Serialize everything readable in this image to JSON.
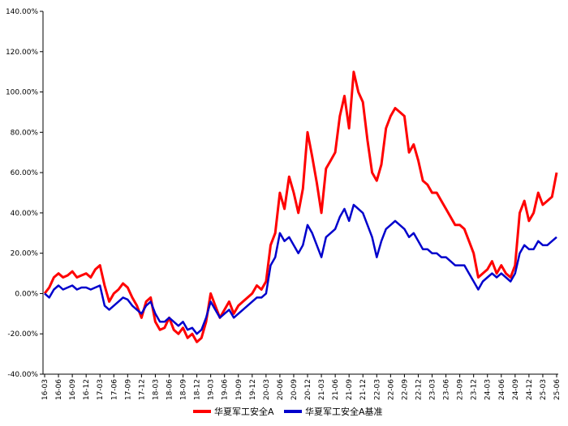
{
  "chart_data": {
    "type": "line",
    "title": "",
    "xlabel": "",
    "ylabel": "",
    "ylim": [
      -40,
      140
    ],
    "y_ticks": [
      "140.00%",
      "120.00%",
      "100.00%",
      "80.00%",
      "60.00%",
      "40.00%",
      "20.00%",
      "0.00%",
      "-20.00%",
      "-40.00%"
    ],
    "x_ticks": [
      "16-03",
      "16-06",
      "16-09",
      "16-12",
      "17-03",
      "17-06",
      "17-09",
      "17-12",
      "18-03",
      "18-06",
      "18-09",
      "18-12",
      "19-03",
      "19-06",
      "19-09",
      "19-12",
      "20-03",
      "20-06",
      "20-09",
      "20-12",
      "21-03",
      "21-06",
      "21-09",
      "21-12",
      "22-03",
      "22-06",
      "22-09",
      "22-12",
      "23-03",
      "23-06",
      "23-09",
      "23-12",
      "24-03",
      "24-06",
      "24-09",
      "24-12",
      "25-03",
      "25-06"
    ],
    "grid": false,
    "legend_position": "bottom-center",
    "series": [
      {
        "name": "华夏军工安全A",
        "color": "#ff0000",
        "x": [
          "16-03",
          "16-04",
          "16-05",
          "16-06",
          "16-07",
          "16-08",
          "16-09",
          "16-10",
          "16-11",
          "16-12",
          "17-01",
          "17-02",
          "17-03",
          "17-04",
          "17-05",
          "17-06",
          "17-07",
          "17-08",
          "17-09",
          "17-10",
          "17-11",
          "17-12",
          "18-01",
          "18-02",
          "18-03",
          "18-04",
          "18-05",
          "18-06",
          "18-07",
          "18-08",
          "18-09",
          "18-10",
          "18-11",
          "18-12",
          "19-01",
          "19-02",
          "19-03",
          "19-04",
          "19-05",
          "19-06",
          "19-07",
          "19-08",
          "19-09",
          "19-10",
          "19-11",
          "19-12",
          "20-01",
          "20-02",
          "20-03",
          "20-04",
          "20-05",
          "20-06",
          "20-07",
          "20-08",
          "20-09",
          "20-10",
          "20-11",
          "20-12",
          "21-01",
          "21-02",
          "21-03",
          "21-04",
          "21-05",
          "21-06",
          "21-07",
          "21-08",
          "21-09",
          "21-10",
          "21-11",
          "21-12",
          "22-01",
          "22-02",
          "22-03",
          "22-04",
          "22-05",
          "22-06",
          "22-07",
          "22-08",
          "22-09",
          "22-10",
          "22-11",
          "22-12",
          "23-01",
          "23-02",
          "23-03",
          "23-04",
          "23-05",
          "23-06",
          "23-07",
          "23-08",
          "23-09",
          "23-10",
          "23-11",
          "23-12",
          "24-01",
          "24-02",
          "24-03",
          "24-04",
          "24-05",
          "24-06",
          "24-07",
          "24-08",
          "24-09",
          "24-10",
          "24-11",
          "24-12",
          "25-01",
          "25-02",
          "25-03",
          "25-04",
          "25-05",
          "25-06"
        ],
        "values": [
          0,
          3,
          8,
          10,
          8,
          9,
          11,
          8,
          9,
          10,
          8,
          12,
          14,
          4,
          -4,
          0,
          2,
          5,
          3,
          -2,
          -6,
          -12,
          -4,
          -2,
          -14,
          -18,
          -17,
          -12,
          -18,
          -20,
          -17,
          -22,
          -20,
          -24,
          -22,
          -14,
          0,
          -6,
          -12,
          -8,
          -4,
          -10,
          -6,
          -4,
          -2,
          0,
          4,
          2,
          6,
          24,
          30,
          50,
          42,
          58,
          50,
          40,
          52,
          80,
          68,
          55,
          40,
          62,
          66,
          70,
          88,
          98,
          82,
          110,
          100,
          95,
          76,
          60,
          56,
          64,
          82,
          88,
          92,
          90,
          88,
          70,
          74,
          66,
          56,
          54,
          50,
          50,
          46,
          42,
          38,
          34,
          34,
          32,
          26,
          20,
          8,
          10,
          12,
          16,
          10,
          14,
          10,
          8,
          14,
          40,
          46,
          36,
          40,
          50,
          44,
          46,
          48,
          60
        ]
      },
      {
        "name": "华夏军工安全A基准",
        "color": "#0000cc",
        "x": [
          "16-03",
          "16-04",
          "16-05",
          "16-06",
          "16-07",
          "16-08",
          "16-09",
          "16-10",
          "16-11",
          "16-12",
          "17-01",
          "17-02",
          "17-03",
          "17-04",
          "17-05",
          "17-06",
          "17-07",
          "17-08",
          "17-09",
          "17-10",
          "17-11",
          "17-12",
          "18-01",
          "18-02",
          "18-03",
          "18-04",
          "18-05",
          "18-06",
          "18-07",
          "18-08",
          "18-09",
          "18-10",
          "18-11",
          "18-12",
          "19-01",
          "19-02",
          "19-03",
          "19-04",
          "19-05",
          "19-06",
          "19-07",
          "19-08",
          "19-09",
          "19-10",
          "19-11",
          "19-12",
          "20-01",
          "20-02",
          "20-03",
          "20-04",
          "20-05",
          "20-06",
          "20-07",
          "20-08",
          "20-09",
          "20-10",
          "20-11",
          "20-12",
          "21-01",
          "21-02",
          "21-03",
          "21-04",
          "21-05",
          "21-06",
          "21-07",
          "21-08",
          "21-09",
          "21-10",
          "21-11",
          "21-12",
          "22-01",
          "22-02",
          "22-03",
          "22-04",
          "22-05",
          "22-06",
          "22-07",
          "22-08",
          "22-09",
          "22-10",
          "22-11",
          "22-12",
          "23-01",
          "23-02",
          "23-03",
          "23-04",
          "23-05",
          "23-06",
          "23-07",
          "23-08",
          "23-09",
          "23-10",
          "23-11",
          "23-12",
          "24-01",
          "24-02",
          "24-03",
          "24-04",
          "24-05",
          "24-06",
          "24-07",
          "24-08",
          "24-09",
          "24-10",
          "24-11",
          "24-12",
          "25-01",
          "25-02",
          "25-03",
          "25-04",
          "25-05",
          "25-06"
        ],
        "values": [
          0,
          -2,
          2,
          4,
          2,
          3,
          4,
          2,
          3,
          3,
          2,
          3,
          4,
          -6,
          -8,
          -6,
          -4,
          -2,
          -3,
          -6,
          -8,
          -10,
          -6,
          -4,
          -10,
          -14,
          -14,
          -12,
          -14,
          -16,
          -14,
          -18,
          -17,
          -20,
          -18,
          -12,
          -4,
          -8,
          -12,
          -10,
          -8,
          -12,
          -10,
          -8,
          -6,
          -4,
          -2,
          -2,
          0,
          14,
          18,
          30,
          26,
          28,
          24,
          20,
          24,
          34,
          30,
          24,
          18,
          28,
          30,
          32,
          38,
          42,
          36,
          44,
          42,
          40,
          34,
          28,
          18,
          26,
          32,
          34,
          36,
          34,
          32,
          28,
          30,
          26,
          22,
          22,
          20,
          20,
          18,
          18,
          16,
          14,
          14,
          14,
          10,
          6,
          2,
          6,
          8,
          10,
          8,
          10,
          8,
          6,
          10,
          20,
          24,
          22,
          22,
          26,
          24,
          24,
          26,
          28
        ]
      }
    ]
  },
  "legend": {
    "items": [
      {
        "label": "华夏军工安全A",
        "color": "#ff0000"
      },
      {
        "label": "华夏军工安全A基准",
        "color": "#0000cc"
      }
    ]
  }
}
